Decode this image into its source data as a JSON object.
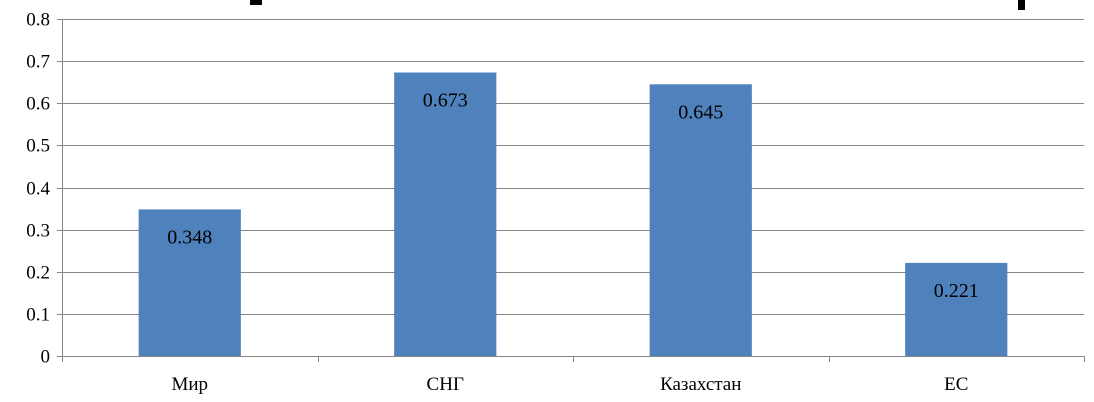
{
  "chart_data": {
    "type": "bar",
    "title": "",
    "xlabel": "",
    "ylabel": "",
    "categories": [
      "Мир",
      "СНГ",
      "Казахстан",
      "ЕС"
    ],
    "series": [
      {
        "values": [
          0.348,
          0.673,
          0.645,
          0.221
        ]
      }
    ],
    "data_labels": [
      "0.348",
      "0.673",
      "0.645",
      "0.221"
    ],
    "ylim": [
      0,
      0.8
    ],
    "yticks": [
      "0",
      "0.1",
      "0.2",
      "0.3",
      "0.4",
      "0.5",
      "0.6",
      "0.7",
      "0.8"
    ],
    "grid": true,
    "legend": "none",
    "colors": {
      "bar": "#4F81BD",
      "grid": "#868686",
      "axis": "#868686"
    }
  }
}
